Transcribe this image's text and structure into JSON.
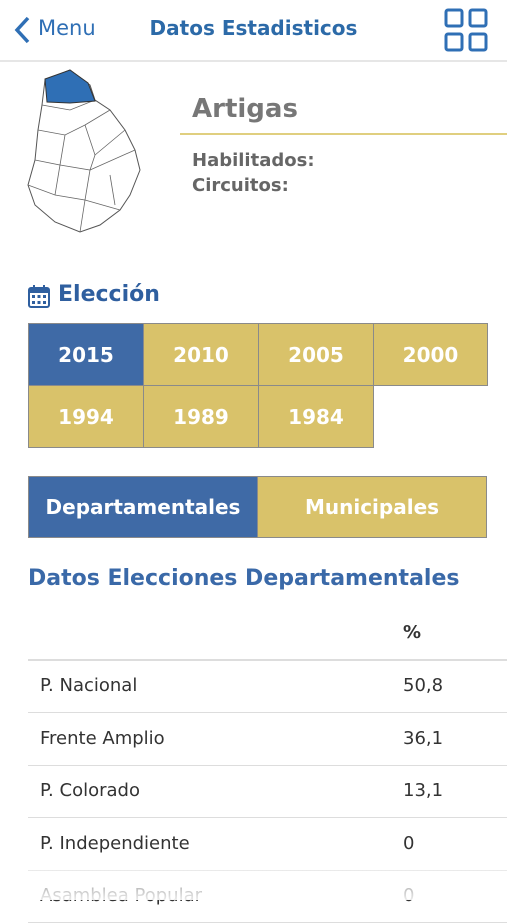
{
  "nav": {
    "back": "Menu",
    "title": "Datos Estadisticos"
  },
  "region": {
    "name": "Artigas",
    "fields": [
      "Habilitados:",
      "Circuitos:"
    ]
  },
  "election": {
    "title": "Elección",
    "years": [
      {
        "label": "2015",
        "active": true
      },
      {
        "label": "2010",
        "active": false
      },
      {
        "label": "2005",
        "active": false
      },
      {
        "label": "2000",
        "active": false
      },
      {
        "label": "1994",
        "active": false
      },
      {
        "label": "1989",
        "active": false
      },
      {
        "label": "1984",
        "active": false
      }
    ]
  },
  "tabs": [
    {
      "label": "Departamentales",
      "active": true
    },
    {
      "label": "Municipales",
      "active": false
    }
  ],
  "data": {
    "title": "Datos Elecciones Departamentales",
    "table": {
      "header": [
        "",
        "%"
      ],
      "rows": [
        [
          "P. Nacional",
          "50,8"
        ],
        [
          "Frente Amplio",
          "36,1"
        ],
        [
          "P. Colorado",
          "13,1"
        ],
        [
          "P. Independiente",
          "0"
        ],
        [
          "Asamblea Popular",
          "0"
        ]
      ]
    }
  }
}
